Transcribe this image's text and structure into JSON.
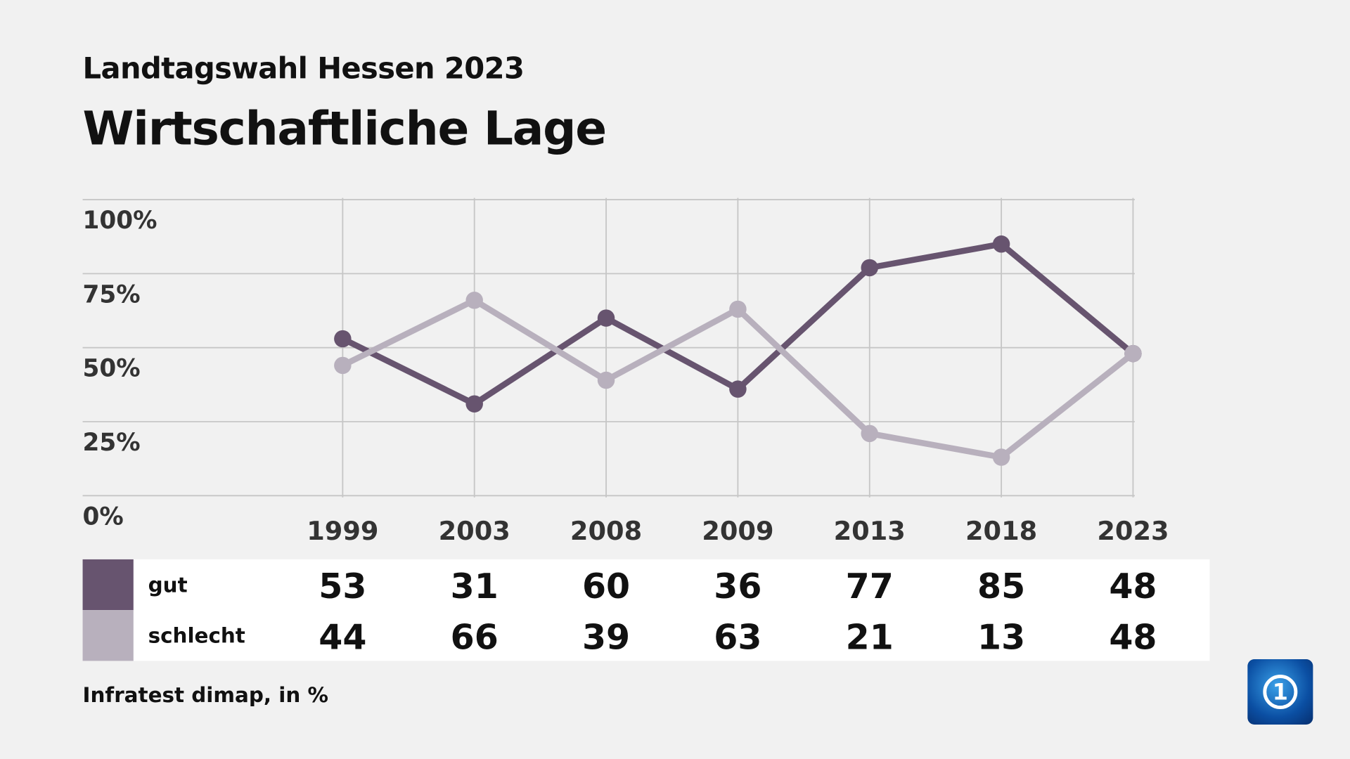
{
  "header": {
    "subtitle": "Landtagswahl Hessen 2023",
    "title": "Wirtschaftliche Lage"
  },
  "chart_data": {
    "type": "line",
    "categories": [
      "1999",
      "2003",
      "2008",
      "2009",
      "2013",
      "2018",
      "2023"
    ],
    "series": [
      {
        "name": "gut",
        "color": "#67546f",
        "values": [
          53,
          31,
          60,
          36,
          77,
          85,
          48
        ]
      },
      {
        "name": "schlecht",
        "color": "#b8b0bd",
        "values": [
          44,
          66,
          39,
          63,
          21,
          13,
          48
        ]
      }
    ],
    "ylim": [
      0,
      100
    ],
    "yticks": [
      "0%",
      "25%",
      "50%",
      "75%",
      "100%"
    ],
    "grid": true,
    "legend": "bottom table"
  },
  "source": "Infratest dimap, in %",
  "logo": "tagesschau-1-logo"
}
